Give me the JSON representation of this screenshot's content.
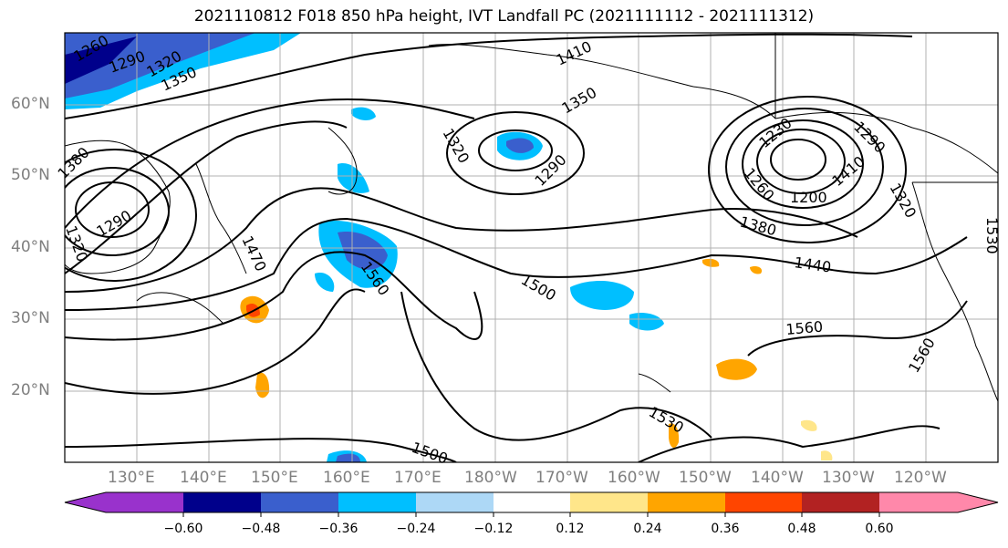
{
  "title": "2021110812 F018 850 hPa height, IVT Landfall PC (2021111112 - 2021111312)",
  "lat_labels": [
    "60°N",
    "50°N",
    "40°N",
    "30°N",
    "20°N"
  ],
  "lon_labels": [
    "130°E",
    "140°E",
    "150°E",
    "160°E",
    "170°E",
    "180°W",
    "170°W",
    "160°W",
    "150°W",
    "140°W",
    "130°W",
    "120°W"
  ],
  "contour_labels": [
    "1260",
    "1290",
    "1320",
    "1350",
    "1410",
    "1350",
    "1320",
    "1290",
    "1230",
    "1290",
    "1260",
    "1200",
    "1410",
    "1320",
    "1380",
    "1290",
    "1320",
    "1470",
    "1560",
    "1380",
    "1440",
    "1500",
    "1560",
    "1560",
    "1530",
    "1500",
    "1530"
  ],
  "colorbar": {
    "ticks": [
      "−0.60",
      "−0.48",
      "−0.36",
      "−0.24",
      "−0.12",
      "0.12",
      "0.24",
      "0.36",
      "0.48",
      "0.60"
    ],
    "colors": [
      "#9932cc",
      "#00008b",
      "#3a5fcd",
      "#00bfff",
      "#add8f6",
      "#ffffff",
      "#ffe68a",
      "#ffa500",
      "#ff4500",
      "#b22222",
      "#ff88aa"
    ]
  }
}
